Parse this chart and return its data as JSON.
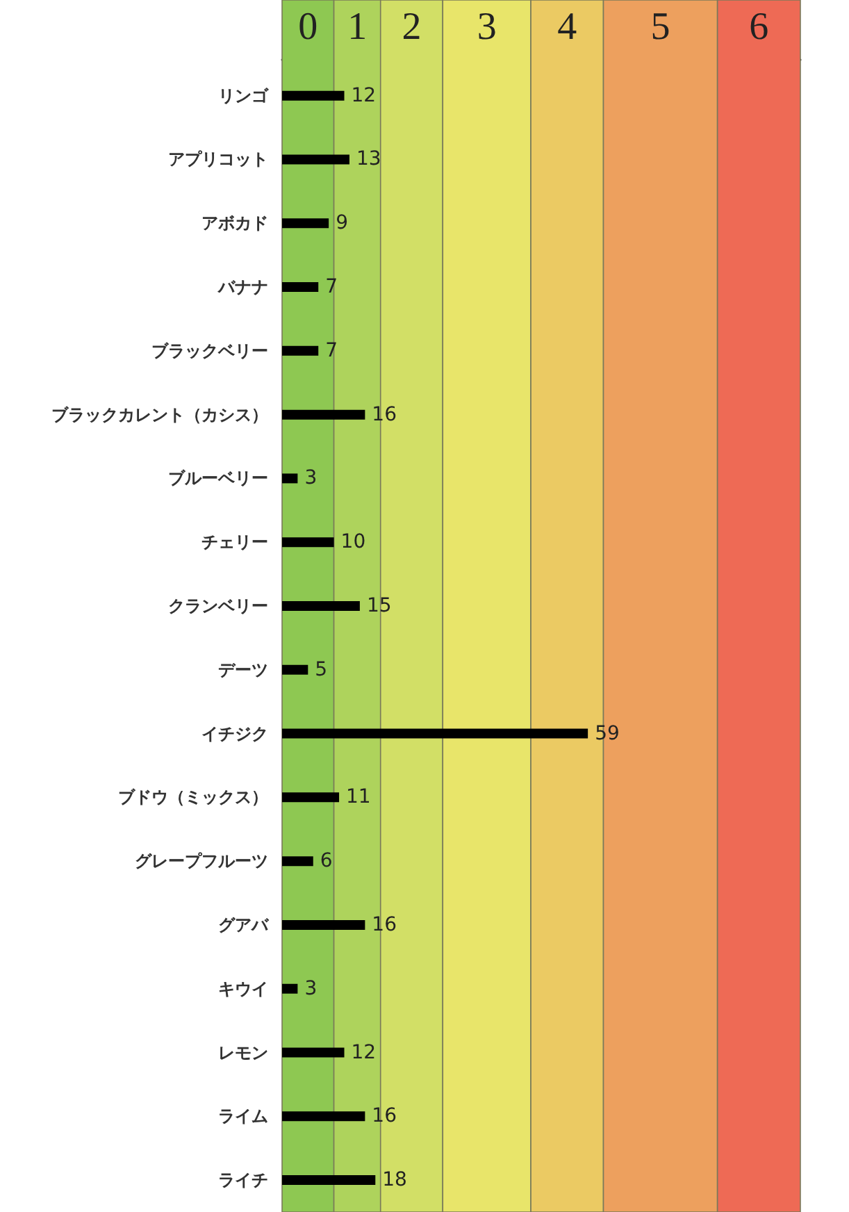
{
  "chart_data": {
    "type": "bar",
    "orientation": "horizontal",
    "categories": [
      "リンゴ",
      "アプリコット",
      "アボカド",
      "バナナ",
      "ブラックベリー",
      "ブラックカレント（カシス）",
      "ブルーベリー",
      "チェリー",
      "クランベリー",
      "デーツ",
      "イチジク",
      "ブドウ（ミックス）",
      "グレープフルーツ",
      "グアバ",
      "キウイ",
      "レモン",
      "ライム",
      "ライチ"
    ],
    "values": [
      12,
      13,
      9,
      7,
      7,
      16,
      3,
      10,
      15,
      5,
      59,
      11,
      6,
      16,
      3,
      12,
      16,
      18
    ],
    "color": "#000000",
    "data_labels": true,
    "xlim": [
      0,
      100
    ],
    "tick_labels": "y",
    "bands": [
      {
        "axis": "x",
        "from": 0,
        "to": 10,
        "label": "0",
        "color": "#8ec852"
      },
      {
        "axis": "x",
        "from": 10,
        "to": 19,
        "label": "1",
        "color": "#aed35c"
      },
      {
        "axis": "x",
        "from": 19,
        "to": 31,
        "label": "2",
        "color": "#d2df66"
      },
      {
        "axis": "x",
        "from": 31,
        "to": 48,
        "label": "3",
        "color": "#e8e56a"
      },
      {
        "axis": "x",
        "from": 48,
        "to": 62,
        "label": "4",
        "color": "#ebca63"
      },
      {
        "axis": "x",
        "from": 62,
        "to": 84,
        "label": "5",
        "color": "#eda05e"
      },
      {
        "axis": "x",
        "from": 84,
        "to": 100,
        "label": "6",
        "color": "#ee6a55"
      }
    ]
  }
}
